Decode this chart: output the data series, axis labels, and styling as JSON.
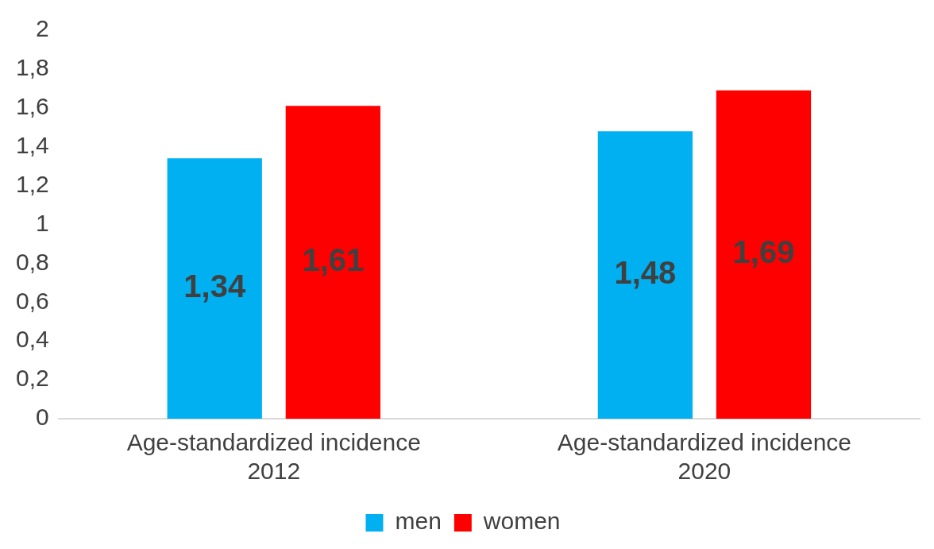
{
  "chart_data": {
    "type": "bar",
    "categories": [
      "Age-standardized incidence 2012",
      "Age-standardized incidence 2020"
    ],
    "series": [
      {
        "name": "men",
        "color": "#00b0f0",
        "values": [
          1.34,
          1.48
        ],
        "value_labels": [
          "1,34",
          "1,48"
        ]
      },
      {
        "name": "women",
        "color": "#ff0000",
        "values": [
          1.61,
          1.69
        ],
        "value_labels": [
          "1,61",
          "1,69"
        ]
      }
    ],
    "ylim": [
      0,
      2
    ],
    "yticks": [
      0,
      {
        "value": 0.2,
        "label": "0,2"
      },
      {
        "value": 0.4,
        "label": "0,4"
      },
      {
        "value": 0.6,
        "label": "0,6"
      },
      {
        "value": 0.8,
        "label": "0,8"
      },
      1,
      {
        "value": 1.2,
        "label": "1,2"
      },
      {
        "value": 1.4,
        "label": "1,4"
      },
      {
        "value": 1.6,
        "label": "1,6"
      },
      {
        "value": 1.8,
        "label": "1,8"
      },
      2
    ],
    "grid": false,
    "legend": "bottom"
  }
}
